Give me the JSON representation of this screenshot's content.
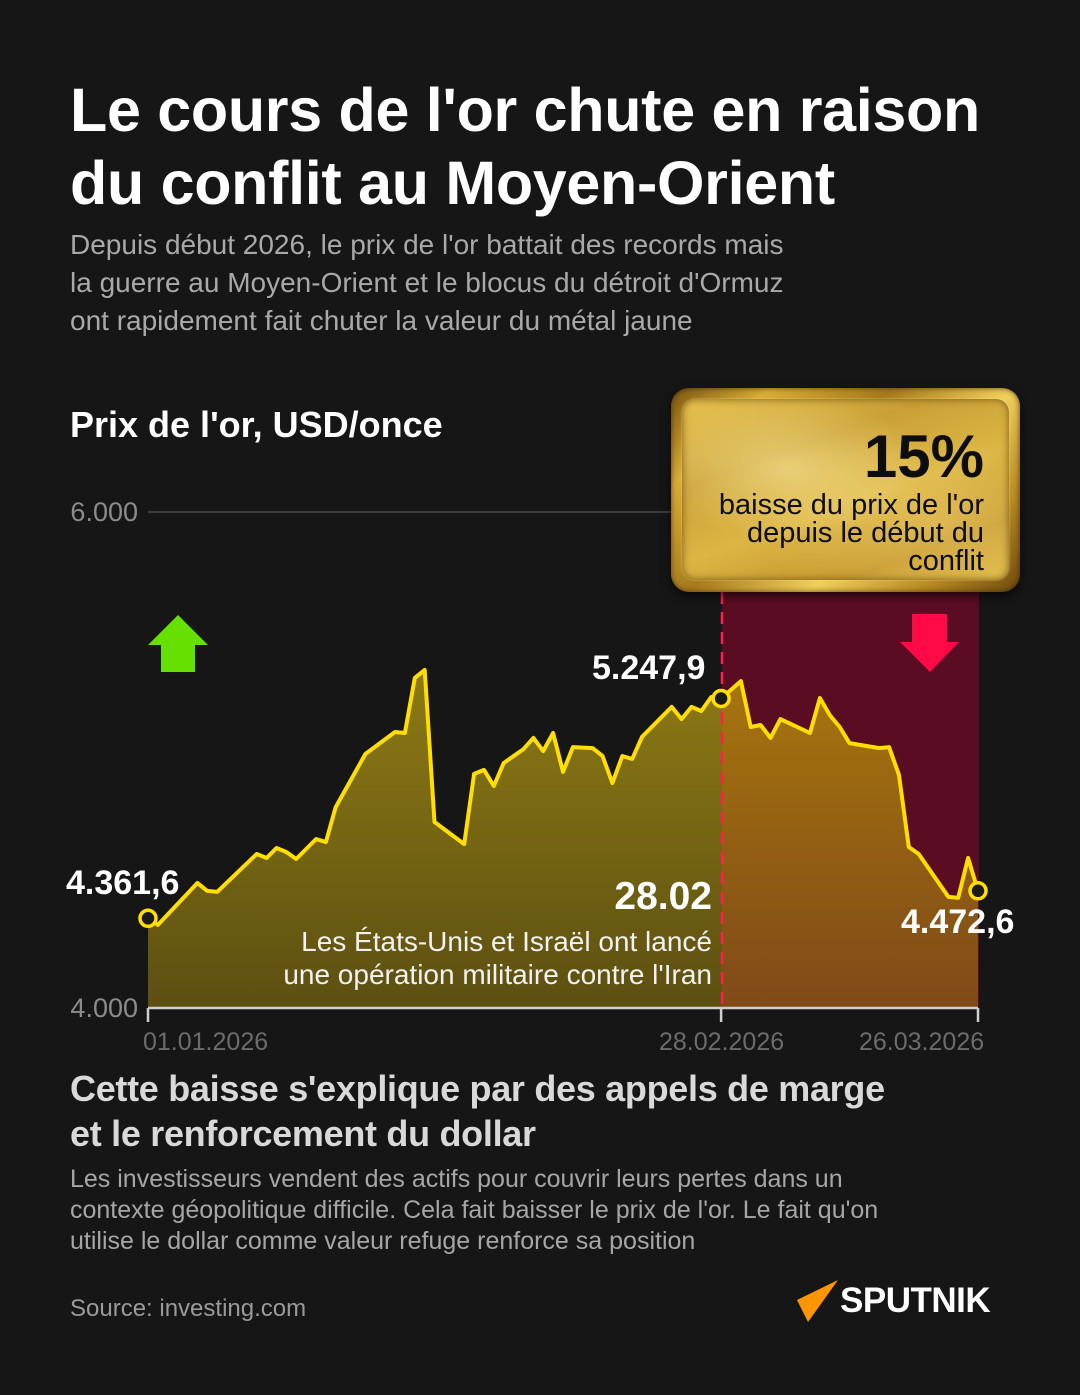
{
  "header": {
    "title_lines": [
      "Le cours de l'or chute en raison",
      "du conflit au Moyen-Orient"
    ],
    "subtitle_lines": [
      "Depuis début 2026, le prix de l'or battait des records mais",
      "la guerre au Moyen-Orient et le blocus du détroit d'Ormuz",
      "ont rapidement fait chuter la valeur du métal jaune"
    ]
  },
  "chart": {
    "title": "Prix de l'or, USD/once",
    "y_ticks": [
      {
        "label": "6.000",
        "value": 6000
      },
      {
        "label": "4.000",
        "value": 4000
      }
    ],
    "x_ticks": [
      {
        "label": "01.01.2026",
        "day": 0
      },
      {
        "label": "28.02.2026",
        "day": 58
      },
      {
        "label": "26.03.2026",
        "day": 84
      }
    ],
    "value_labels": {
      "start": "4.361,6",
      "conflict": "5.247,9",
      "end": "4.472,6"
    },
    "event": {
      "date": "28.02",
      "lines": [
        "Les États-Unis et Israël ont lancé",
        "une opération militaire contre l'Iran"
      ]
    },
    "callout": {
      "percent": "15%",
      "lines": [
        "baisse du prix de l'or",
        "depuis le début du",
        "conflit"
      ]
    },
    "arrows": {
      "up": "arrow-up-icon",
      "down": "arrow-down-icon"
    }
  },
  "chart_data": {
    "type": "area",
    "title": "Prix de l'or, USD/once",
    "xlabel": "",
    "ylabel": "USD/once",
    "ylim": [
      4000,
      6000
    ],
    "y_ticks": [
      4000,
      6000
    ],
    "x_tick_labels": [
      "01.01.2026",
      "28.02.2026",
      "26.03.2026"
    ],
    "x_range_days": [
      0,
      84
    ],
    "grid": "horizontal line at 6000",
    "legend": "none",
    "series": [
      {
        "name": "Prix de l'or (USD/once)",
        "days": [
          0,
          1,
          5,
          6,
          7,
          11,
          12,
          13,
          14,
          15,
          17,
          18,
          19,
          22,
          25,
          26,
          27,
          28,
          29,
          32,
          33,
          34,
          35,
          36,
          38,
          39,
          40,
          41,
          42,
          43,
          45,
          46,
          47,
          48,
          49,
          50,
          53,
          54,
          55,
          56,
          57,
          58,
          60,
          61,
          62,
          63,
          64,
          67,
          68,
          69,
          70,
          71,
          74,
          75,
          76,
          77,
          78,
          81,
          82,
          83,
          84
        ],
        "values": [
          4361.6,
          4335,
          4504,
          4472,
          4468,
          4621,
          4605,
          4645,
          4629,
          4601,
          4681,
          4669,
          4810,
          5024,
          5113,
          5109,
          5331,
          5363,
          4750,
          4661,
          4944,
          4960,
          4895,
          4988,
          5044,
          5089,
          5036,
          5109,
          4952,
          5052,
          5048,
          5016,
          4907,
          5016,
          5004,
          5093,
          5214,
          5165,
          5214,
          5197,
          5254,
          5247.9,
          5318,
          5133,
          5141,
          5089,
          5165,
          5109,
          5250,
          5181,
          5133,
          5068,
          5048,
          5052,
          4939,
          4649,
          4621,
          4448,
          4444,
          4605,
          4472.6
        ]
      }
    ],
    "markers": [
      {
        "day": 0,
        "value": 4361.6,
        "label": "4.361,6"
      },
      {
        "day": 58,
        "value": 5247.9,
        "label": "5.247,9"
      },
      {
        "day": 84,
        "value": 4472.6,
        "label": "4.472,6"
      }
    ],
    "annotations": [
      {
        "day": 58,
        "type": "vertical-dashed-line",
        "label": "28.02 — Les États-Unis et Israël ont lancé une opération militaire contre l'Iran"
      },
      {
        "from_day": 58,
        "to_day": 84,
        "type": "shaded-region",
        "label": "15% baisse du prix de l'or depuis le début du conflit"
      }
    ]
  },
  "section": {
    "heading_lines": [
      "Cette baisse s'explique par des appels de marge",
      "et le renforcement du dollar"
    ],
    "body_lines": [
      "Les investisseurs vendent des actifs pour couvrir leurs pertes dans un",
      "contexte géopolitique difficile. Cela fait baisser le prix de l'or. Le fait qu'on",
      "utilise le dollar comme valeur refuge renforce sa position"
    ]
  },
  "footer": {
    "source": "Source: investing.com",
    "logo": "SPUTNIK"
  },
  "colors": {
    "background": "#161616",
    "line": "#ffde00",
    "area_before": "#857414",
    "area_after": "#a06a12",
    "conflict_region": "#5a0c22",
    "event_line": "#ff1f4d",
    "arrow_up": "#66e000",
    "arrow_down": "#ff0a46",
    "logo_accent": "#ff9500"
  }
}
